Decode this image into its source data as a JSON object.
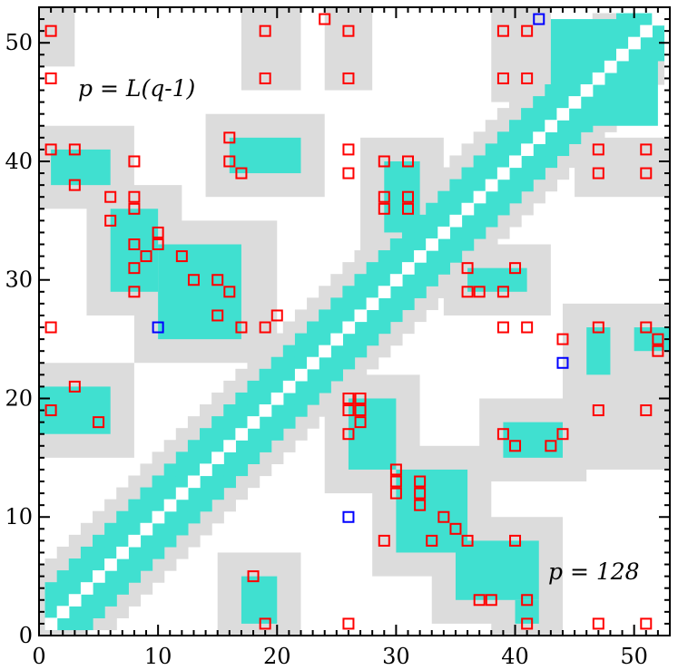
{
  "chart_data": {
    "type": "scatter",
    "title": "",
    "xlabel": "",
    "ylabel": "",
    "xlim": [
      0,
      53
    ],
    "ylim": [
      0,
      53
    ],
    "xticks": [
      0,
      10,
      20,
      30,
      40,
      50
    ],
    "yticks": [
      0,
      10,
      20,
      30,
      40,
      50
    ],
    "xticklabels": [
      "0",
      "10",
      "20",
      "30",
      "40",
      "50"
    ],
    "yticklabels": [
      "0",
      "10",
      "20",
      "30",
      "40",
      "50"
    ],
    "annotations": {
      "upper_left": "p = L(q-1)",
      "lower_right": "p = 128"
    },
    "colors": {
      "cyan": "#40e0d0",
      "gray": "#dcdcdc",
      "red": "#ff0000",
      "blue": "#0000ff",
      "diagonal": "#ffffff"
    },
    "band_half_width": 3,
    "band_gray_extra": 2,
    "cyan_blocks": [
      [
        43,
        52,
        43,
        52
      ],
      [
        1,
        6,
        38,
        41
      ],
      [
        6,
        10,
        29,
        36
      ],
      [
        10,
        17,
        25,
        33
      ],
      [
        16,
        22,
        39,
        42
      ],
      [
        29,
        32,
        34,
        40
      ],
      [
        36,
        41,
        29,
        31
      ],
      [
        26,
        30,
        14,
        20
      ],
      [
        30,
        36,
        7,
        14
      ],
      [
        35,
        42,
        3,
        8
      ],
      [
        0,
        6,
        17,
        21
      ],
      [
        39,
        44,
        15,
        18
      ],
      [
        17,
        20,
        1,
        5
      ],
      [
        40,
        42,
        1,
        3
      ],
      [
        46,
        48,
        22,
        26
      ],
      [
        50,
        53,
        24,
        26
      ]
    ],
    "gray_blocks": [
      [
        0,
        8,
        36,
        43
      ],
      [
        4,
        12,
        27,
        38
      ],
      [
        8,
        20,
        23,
        35
      ],
      [
        14,
        24,
        37,
        44
      ],
      [
        27,
        34,
        32,
        42
      ],
      [
        34,
        43,
        27,
        33
      ],
      [
        24,
        32,
        12,
        22
      ],
      [
        28,
        38,
        5,
        16
      ],
      [
        33,
        44,
        1,
        10
      ],
      [
        0,
        8,
        15,
        23
      ],
      [
        37,
        46,
        13,
        20
      ],
      [
        15,
        22,
        0,
        7
      ],
      [
        38,
        44,
        0,
        5
      ],
      [
        44,
        53,
        20,
        28
      ],
      [
        0,
        4,
        0,
        6
      ],
      [
        44,
        53,
        14,
        20
      ],
      [
        45,
        53,
        37,
        42
      ],
      [
        0,
        3,
        48,
        53
      ],
      [
        17,
        22,
        46,
        53
      ],
      [
        24,
        28,
        46,
        53
      ],
      [
        38,
        43,
        45,
        53
      ]
    ],
    "red_squares": [
      [
        1,
        51
      ],
      [
        1,
        47
      ],
      [
        1,
        41
      ],
      [
        1,
        26
      ],
      [
        1,
        19
      ],
      [
        3,
        41
      ],
      [
        3,
        38
      ],
      [
        3,
        21
      ],
      [
        5,
        18
      ],
      [
        6,
        37
      ],
      [
        6,
        35
      ],
      [
        8,
        40
      ],
      [
        8,
        37
      ],
      [
        8,
        36
      ],
      [
        8,
        33
      ],
      [
        8,
        31
      ],
      [
        8,
        29
      ],
      [
        9,
        32
      ],
      [
        10,
        34
      ],
      [
        10,
        33
      ],
      [
        12,
        32
      ],
      [
        13,
        30
      ],
      [
        15,
        30
      ],
      [
        15,
        27
      ],
      [
        16,
        42
      ],
      [
        16,
        40
      ],
      [
        16,
        29
      ],
      [
        17,
        39
      ],
      [
        17,
        26
      ],
      [
        19,
        51
      ],
      [
        19,
        47
      ],
      [
        19,
        26
      ],
      [
        19,
        1
      ],
      [
        20,
        27
      ],
      [
        18,
        5
      ],
      [
        24,
        52
      ],
      [
        26,
        51
      ],
      [
        26,
        47
      ],
      [
        26,
        41
      ],
      [
        26,
        39
      ],
      [
        26,
        20
      ],
      [
        26,
        19
      ],
      [
        26,
        17
      ],
      [
        26,
        1
      ],
      [
        27,
        20
      ],
      [
        27,
        19
      ],
      [
        27,
        18
      ],
      [
        29,
        40
      ],
      [
        29,
        37
      ],
      [
        29,
        36
      ],
      [
        29,
        8
      ],
      [
        30,
        14
      ],
      [
        30,
        13
      ],
      [
        30,
        12
      ],
      [
        31,
        40
      ],
      [
        31,
        37
      ],
      [
        31,
        36
      ],
      [
        32,
        13
      ],
      [
        32,
        12
      ],
      [
        32,
        11
      ],
      [
        33,
        8
      ],
      [
        34,
        10
      ],
      [
        35,
        9
      ],
      [
        36,
        31
      ],
      [
        36,
        29
      ],
      [
        36,
        8
      ],
      [
        37,
        29
      ],
      [
        37,
        3
      ],
      [
        38,
        3
      ],
      [
        39,
        51
      ],
      [
        39,
        47
      ],
      [
        39,
        29
      ],
      [
        39,
        26
      ],
      [
        39,
        17
      ],
      [
        40,
        31
      ],
      [
        40,
        16
      ],
      [
        40,
        8
      ],
      [
        41,
        51
      ],
      [
        41,
        47
      ],
      [
        41,
        26
      ],
      [
        41,
        3
      ],
      [
        41,
        1
      ],
      [
        43,
        16
      ],
      [
        44,
        25
      ],
      [
        44,
        17
      ],
      [
        47,
        41
      ],
      [
        47,
        39
      ],
      [
        47,
        26
      ],
      [
        47,
        19
      ],
      [
        47,
        1
      ],
      [
        51,
        41
      ],
      [
        51,
        39
      ],
      [
        51,
        26
      ],
      [
        51,
        19
      ],
      [
        51,
        1
      ],
      [
        52,
        25
      ],
      [
        52,
        24
      ]
    ],
    "blue_squares": [
      [
        42,
        52
      ],
      [
        10,
        26
      ],
      [
        44,
        23
      ],
      [
        26,
        10
      ]
    ]
  }
}
